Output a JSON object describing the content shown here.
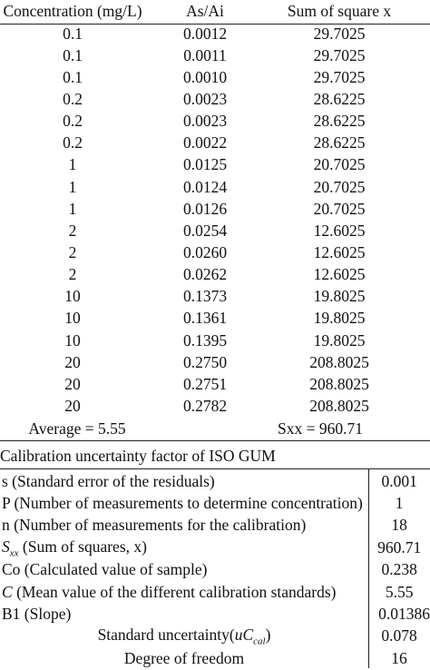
{
  "table1": {
    "headers": [
      "Concentration (mg/L)",
      "As/Ai",
      "Sum of square x"
    ],
    "rows": [
      [
        "0.1",
        "0.0012",
        "29.7025"
      ],
      [
        "0.1",
        "0.0011",
        "29.7025"
      ],
      [
        "0.1",
        "0.0010",
        "29.7025"
      ],
      [
        "0.2",
        "0.0023",
        "28.6225"
      ],
      [
        "0.2",
        "0.0023",
        "28.6225"
      ],
      [
        "0.2",
        "0.0022",
        "28.6225"
      ],
      [
        "1",
        "0.0125",
        "20.7025"
      ],
      [
        "1",
        "0.0124",
        "20.7025"
      ],
      [
        "1",
        "0.0126",
        "20.7025"
      ],
      [
        "2",
        "0.0254",
        "12.6025"
      ],
      [
        "2",
        "0.0260",
        "12.6025"
      ],
      [
        "2",
        "0.0262",
        "12.6025"
      ],
      [
        "10",
        "0.1373",
        "19.8025"
      ],
      [
        "10",
        "0.1361",
        "19.8025"
      ],
      [
        "10",
        "0.1395",
        "19.8025"
      ],
      [
        "20",
        "0.2750",
        "208.8025"
      ],
      [
        "20",
        "0.2751",
        "208.8025"
      ],
      [
        "20",
        "0.2782",
        "208.8025"
      ]
    ],
    "average": "Average = 5.55",
    "sxx": "Sxx = 960.71"
  },
  "table2": {
    "caption": "Calibration uncertainty factor of ISO GUM",
    "rows": [
      {
        "label": "s (Standard error of the residuals)",
        "value": "0.001"
      },
      {
        "label": "P (Number of measurements to determine concentration)",
        "value": "1"
      },
      {
        "label": "n (Number of measurements for the calibration)",
        "value": "18"
      },
      {
        "label_sym": "S",
        "label_sub": "xx",
        "label": " (Sum of squares, x)",
        "value": "960.71"
      },
      {
        "label": "Co (Calculated value of sample)",
        "value": "0.238"
      },
      {
        "label_sym": "C",
        "label": " (Mean value of the different calibration standards)",
        "value": "5.55"
      },
      {
        "label": "B1 (Slope)",
        "value": "0.01386"
      },
      {
        "label_pre": "Standard uncertainty(",
        "label_sym": "uC",
        "label_sub": "cal",
        "label_post": ")",
        "value": "0.078"
      },
      {
        "label": "Degree of freedom",
        "value": "16"
      }
    ]
  }
}
